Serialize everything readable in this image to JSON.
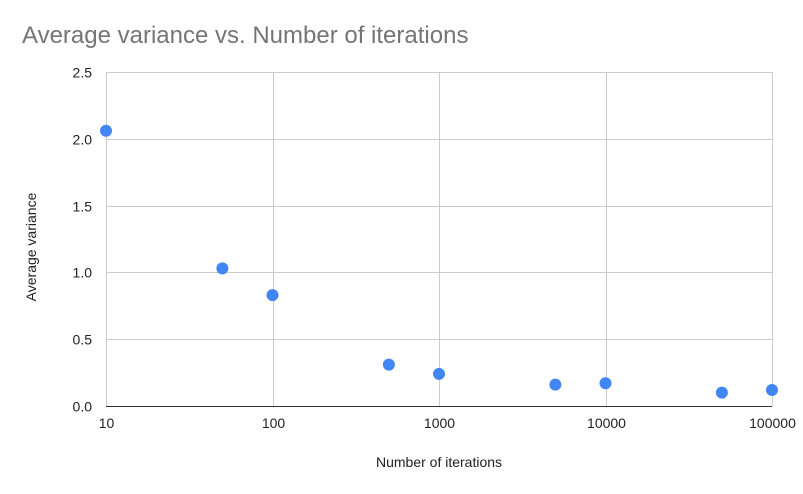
{
  "chart_data": {
    "type": "scatter",
    "title": "Average variance vs. Number of iterations",
    "xlabel": "Number of iterations",
    "ylabel": "Average variance",
    "x_scale": "log",
    "xlim": [
      10,
      100000
    ],
    "ylim": [
      0,
      2.5
    ],
    "x_ticks": [
      "10",
      "100",
      "1000",
      "10000",
      "100000"
    ],
    "y_ticks": [
      "0.0",
      "0.5",
      "1.0",
      "1.5",
      "2.0",
      "2.5"
    ],
    "grid": true,
    "legend": "none",
    "point_color": "#4285f4",
    "points": [
      {
        "x": 10,
        "y": 2.06
      },
      {
        "x": 50,
        "y": 1.03
      },
      {
        "x": 100,
        "y": 0.83
      },
      {
        "x": 500,
        "y": 0.31
      },
      {
        "x": 1000,
        "y": 0.24
      },
      {
        "x": 5000,
        "y": 0.16
      },
      {
        "x": 10000,
        "y": 0.17
      },
      {
        "x": 50000,
        "y": 0.1
      },
      {
        "x": 100000,
        "y": 0.12
      }
    ]
  }
}
